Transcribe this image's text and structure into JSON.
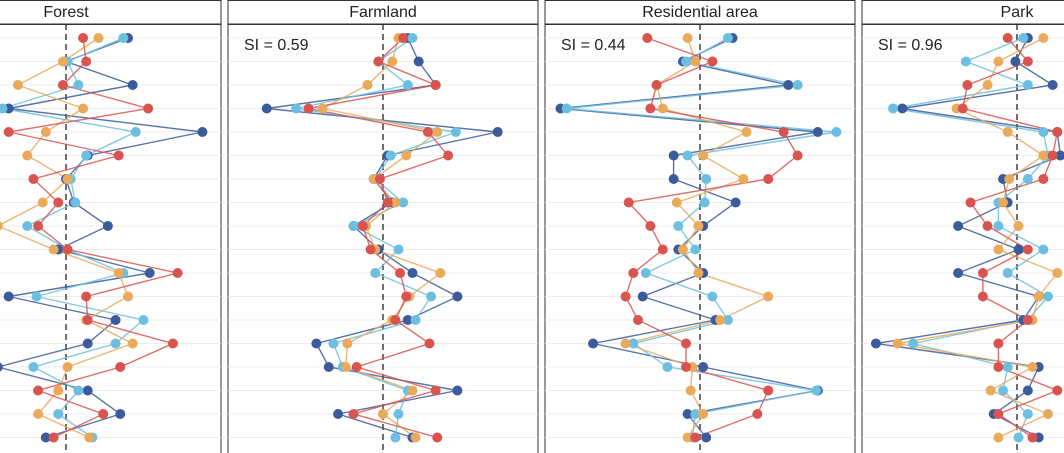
{
  "chart_data": [
    {
      "type": "line",
      "title": "Forest",
      "xlim": [
        -1,
        1
      ],
      "reference_line": 0,
      "grid": true,
      "categories": [
        null,
        null,
        null,
        null,
        null,
        null,
        null,
        null,
        null,
        null,
        null,
        null,
        null,
        null,
        null,
        null,
        null,
        null
      ],
      "series": [
        {
          "color": "#3b5b9a",
          "values": [
            0.4,
            0,
            0.43,
            -0.37,
            0.88,
            0.14,
            0,
            0.05,
            0.27,
            -0.05,
            0.54,
            -0.37,
            0.32,
            0.14,
            -0.44,
            0.14,
            0.35,
            -0.13
          ]
        },
        {
          "color": "#6cbfe0",
          "values": [
            0.37,
            0.01,
            0.08,
            -0.41,
            0.45,
            0.13,
            0.03,
            0.06,
            -0.25,
            0.01,
            0.37,
            -0.19,
            0.5,
            0.32,
            -0.21,
            0.08,
            -0.05,
            0.17
          ]
        },
        {
          "color": "#e9aa5c",
          "values": [
            0.21,
            -0.02,
            -0.31,
            0.11,
            -0.13,
            -0.25,
            0.01,
            -0.15,
            -0.44,
            -0.08,
            0.34,
            0.4,
            0.13,
            0.43,
            0.01,
            -0.05,
            -0.18,
            0.15
          ]
        },
        {
          "color": "#d9534f",
          "values": [
            0.11,
            0.13,
            -0.02,
            0.53,
            -0.37,
            0.34,
            -0.21,
            -0.05,
            -0.18,
            0.01,
            0.72,
            0.13,
            0.14,
            0.69,
            0.35,
            -0.18,
            0.24,
            -0.08
          ]
        }
      ]
    },
    {
      "type": "line",
      "title": "Farmland",
      "annotation": "SI = 0.59",
      "xlim": [
        -1,
        1
      ],
      "reference_line": 0,
      "grid": true,
      "categories": [
        null,
        null,
        null,
        null,
        null,
        null,
        null,
        null,
        null,
        null,
        null,
        null,
        null,
        null,
        null,
        null,
        null,
        null
      ],
      "series": [
        {
          "color": "#3b5b9a",
          "values": [
            0.16,
            0.23,
            0.34,
            -0.75,
            0.74,
            0.03,
            -0.06,
            0.06,
            -0.19,
            -0.03,
            0.19,
            0.48,
            0.16,
            -0.43,
            -0.35,
            0.48,
            -0.29,
            0.19
          ]
        },
        {
          "color": "#6cbfe0",
          "values": [
            0.19,
            -0.03,
            0.16,
            -0.56,
            0.47,
            0.05,
            -0.05,
            0.13,
            -0.19,
            0.1,
            -0.05,
            0.31,
            0.21,
            -0.32,
            -0.26,
            0.16,
            0.1,
            0.08
          ]
        },
        {
          "color": "#e9aa5c",
          "values": [
            0.1,
            0.06,
            -0.1,
            -0.39,
            0.35,
            0.15,
            -0.06,
            0.08,
            -0.11,
            -0.05,
            0.37,
            0.17,
            0.06,
            -0.23,
            -0.24,
            0.19,
            0,
            0.21
          ]
        },
        {
          "color": "#d9534f",
          "values": [
            0.13,
            -0.03,
            0.34,
            -0.48,
            0.29,
            0.42,
            -0.02,
            0.03,
            -0.13,
            -0.08,
            0.11,
            0.15,
            0.08,
            0.3,
            -0.17,
            0.34,
            -0.19,
            0.35
          ]
        }
      ]
    },
    {
      "type": "line",
      "title": "Residential area",
      "annotation": "SI = 0.44",
      "xlim": [
        -1,
        1
      ],
      "reference_line": 0,
      "grid": true,
      "categories": [
        null,
        null,
        null,
        null,
        null,
        null,
        null,
        null,
        null,
        null,
        null,
        null,
        null,
        null,
        null,
        null,
        null,
        null
      ],
      "series": [
        {
          "color": "#3b5b9a",
          "values": [
            0.21,
            -0.11,
            0.57,
            -0.9,
            0.76,
            -0.17,
            -0.17,
            0.23,
            0.02,
            -0.14,
            0.02,
            -0.37,
            0.1,
            -0.69,
            0.02,
            0.76,
            -0.08,
            0.04
          ]
        },
        {
          "color": "#6cbfe0",
          "values": [
            0.18,
            -0.09,
            0.63,
            -0.86,
            0.88,
            -0.08,
            0.04,
            0.03,
            -0.14,
            -0.03,
            -0.35,
            0.08,
            0.18,
            -0.43,
            -0.21,
            0.75,
            -0.03,
            -0.05
          ]
        },
        {
          "color": "#e9aa5c",
          "values": [
            -0.08,
            -0.03,
            -0.28,
            -0.24,
            0.3,
            0.02,
            0.28,
            -0.15,
            -0.01,
            -0.11,
            -0.01,
            0.44,
            0.13,
            -0.48,
            -0.05,
            -0.06,
            0.02,
            -0.08
          ]
        },
        {
          "color": "#d9534f",
          "values": [
            -0.34,
            0.08,
            -0.28,
            -0.32,
            0.54,
            0.63,
            0.44,
            -0.46,
            -0.32,
            -0.24,
            -0.43,
            -0.48,
            -0.4,
            -0.09,
            -0.09,
            0.44,
            0.37,
            -0.03
          ]
        }
      ]
    },
    {
      "type": "line",
      "title": "Park",
      "annotation": "SI = 0.96",
      "xlim": [
        -1,
        1
      ],
      "reference_line": 0,
      "grid": true,
      "categories": [
        null,
        null,
        null,
        null,
        null,
        null,
        null,
        null,
        null,
        null,
        null,
        null,
        null,
        null,
        null,
        null,
        null,
        null
      ],
      "series": [
        {
          "color": "#3b5b9a",
          "values": [
            0.07,
            -0.01,
            0.23,
            -0.74,
            0.26,
            0.28,
            -0.09,
            -0.06,
            -0.38,
            0.01,
            -0.38,
            0.14,
            0.04,
            -0.91,
            0.14,
            0.07,
            -0.15,
            0.14
          ]
        },
        {
          "color": "#6cbfe0",
          "values": [
            0.04,
            -0.33,
            0.07,
            -0.8,
            0.17,
            0.2,
            0.07,
            -0.12,
            -0.12,
            0.17,
            -0.06,
            0.2,
            0.07,
            -0.67,
            -0.06,
            -0.09,
            0.07,
            0.01
          ]
        },
        {
          "color": "#e9aa5c",
          "values": [
            0.17,
            -0.12,
            -0.19,
            -0.39,
            -0.06,
            0.17,
            -0.05,
            -0.09,
            0.01,
            -0.12,
            0.26,
            0.14,
            0.1,
            -0.77,
            0.1,
            -0.17,
            0.2,
            -0.12
          ]
        },
        {
          "color": "#d9534f",
          "values": [
            -0.06,
            0.07,
            -0.32,
            -0.35,
            0.26,
            0.23,
            0.17,
            -0.3,
            -0.19,
            0.07,
            -0.22,
            -0.22,
            0.07,
            -0.12,
            -0.12,
            0.26,
            -0.12,
            0.1
          ]
        }
      ]
    }
  ]
}
